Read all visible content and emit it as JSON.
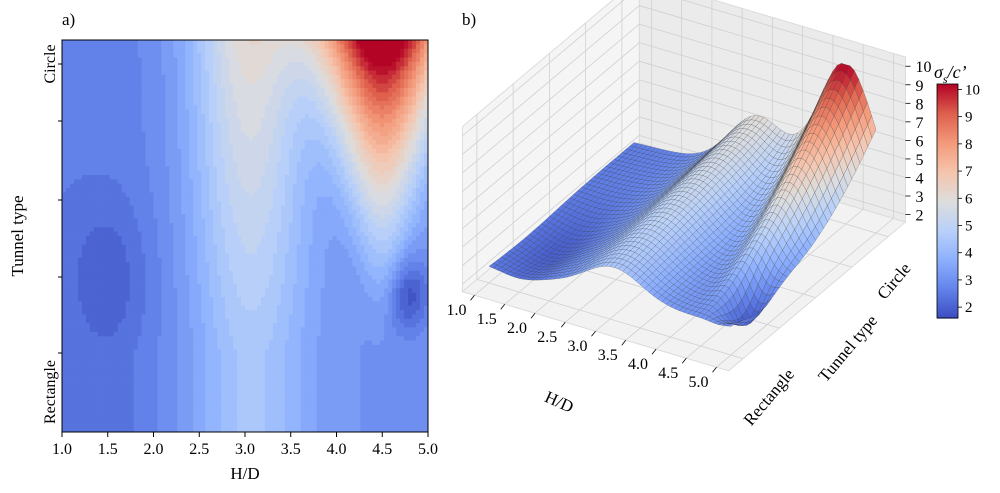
{
  "chart_data": [
    {
      "type": "contour",
      "panel_label": "a)",
      "xlabel": "H/D",
      "ylabel": "Tunnel type",
      "xticks": [
        "1.0",
        "1.5",
        "2.0",
        "2.5",
        "3.0",
        "3.5",
        "4.0",
        "4.5",
        "5.0"
      ],
      "yticks": [
        "Rectangle",
        "Circle"
      ],
      "xlim": [
        1.0,
        5.0
      ],
      "ylim": [
        0,
        1
      ],
      "colormap": "coolwarm",
      "z_range": [
        1.6,
        10.2
      ],
      "features": {
        "max_value": 10.2,
        "max_location": {
          "x": 4.5,
          "y": 1.0
        },
        "min_value": 1.7,
        "min_location": {
          "x": 4.8,
          "y": 0.2
        }
      }
    },
    {
      "type": "surface3d",
      "panel_label": "b)",
      "xlabel": "H/D",
      "ylabel": "Tunnel type",
      "xticks": [
        "1.0",
        "1.5",
        "2.0",
        "2.5",
        "3.0",
        "3.5",
        "4.0",
        "4.5",
        "5.0"
      ],
      "yticks": [
        "Rectangle",
        "Circle"
      ],
      "zticks": [
        "2",
        "3",
        "4",
        "5",
        "6",
        "7",
        "8",
        "9",
        "10"
      ],
      "zlim": [
        1.6,
        10.5
      ],
      "colormap": "coolwarm"
    },
    {
      "type": "colorbar",
      "label": "σs/c’",
      "label_base": "σ",
      "label_sub": "s",
      "label_rest": "/c’",
      "ticks": [
        "2",
        "3",
        "4",
        "5",
        "6",
        "7",
        "8",
        "9",
        "10"
      ],
      "range": [
        1.6,
        10.2
      ]
    }
  ]
}
